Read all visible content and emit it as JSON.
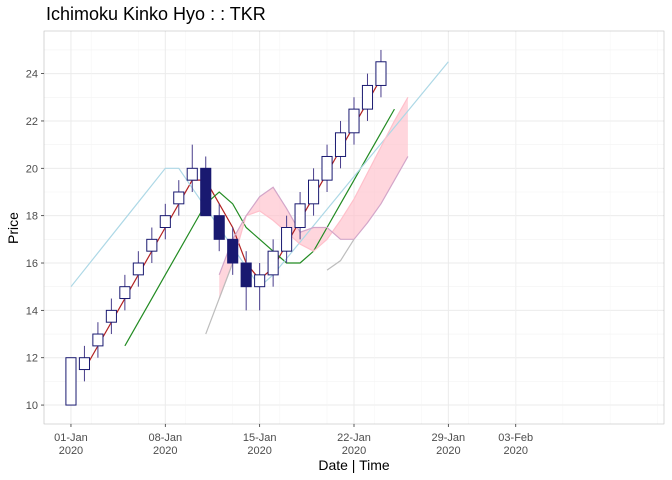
{
  "chart_data": {
    "type": "candlestick",
    "title": "Ichimoku Kinko Hyo : : TKR",
    "xlabel": "Date | Time",
    "ylabel": "Price",
    "ylim": [
      9.2,
      25.8
    ],
    "y_ticks": [
      10,
      12,
      14,
      16,
      18,
      20,
      22,
      24
    ],
    "x_ticks": [
      {
        "date": "2020-01-01",
        "label1": "01-Jan",
        "label2": "2020"
      },
      {
        "date": "2020-01-08",
        "label1": "08-Jan",
        "label2": "2020"
      },
      {
        "date": "2020-01-15",
        "label1": "15-Jan",
        "label2": "2020"
      },
      {
        "date": "2020-01-22",
        "label1": "22-Jan",
        "label2": "2020"
      },
      {
        "date": "2020-01-29",
        "label1": "29-Jan",
        "label2": "2020"
      },
      {
        "date": "2020-02-03",
        "label1": "03-Feb",
        "label2": "2020"
      }
    ],
    "xlim": [
      "2019-12-30",
      "2020-02-14"
    ],
    "grid": true,
    "colors": {
      "up_fill": "#ffffff",
      "up_border": "#191970",
      "down_fill": "#191970",
      "wick": "#483d8b",
      "tenkan": "#b22222",
      "kijun": "#228b22",
      "chikou": "#add8e6",
      "senkou_a": "#ffc0cb",
      "senkou_b": "#d3a6c9",
      "cloud": "#ffc0cb",
      "cloud_alt": "#bdbdbd"
    },
    "candles": [
      {
        "date": "2020-01-01",
        "open": 10,
        "high": 12,
        "low": 10,
        "close": 12
      },
      {
        "date": "2020-01-02",
        "open": 11.5,
        "high": 12.5,
        "low": 11,
        "close": 12
      },
      {
        "date": "2020-01-03",
        "open": 12.5,
        "high": 13.5,
        "low": 12,
        "close": 13
      },
      {
        "date": "2020-01-04",
        "open": 13.5,
        "high": 14.5,
        "low": 13,
        "close": 14
      },
      {
        "date": "2020-01-05",
        "open": 14.5,
        "high": 15.5,
        "low": 14,
        "close": 15
      },
      {
        "date": "2020-01-06",
        "open": 15.5,
        "high": 16.5,
        "low": 15,
        "close": 16
      },
      {
        "date": "2020-01-07",
        "open": 16.5,
        "high": 17.5,
        "low": 16,
        "close": 17
      },
      {
        "date": "2020-01-08",
        "open": 17.5,
        "high": 18.5,
        "low": 17,
        "close": 18
      },
      {
        "date": "2020-01-09",
        "open": 18.5,
        "high": 19.5,
        "low": 18,
        "close": 19
      },
      {
        "date": "2020-01-10",
        "open": 19.5,
        "high": 21,
        "low": 19,
        "close": 20
      },
      {
        "date": "2020-01-11",
        "open": 20,
        "high": 20.5,
        "low": 18,
        "close": 18
      },
      {
        "date": "2020-01-12",
        "open": 18,
        "high": 18.5,
        "low": 16.5,
        "close": 17
      },
      {
        "date": "2020-01-13",
        "open": 17,
        "high": 17.5,
        "low": 15.5,
        "close": 16
      },
      {
        "date": "2020-01-14",
        "open": 16,
        "high": 16.5,
        "low": 14,
        "close": 15
      },
      {
        "date": "2020-01-15",
        "open": 15,
        "high": 16,
        "low": 14,
        "close": 15.5
      },
      {
        "date": "2020-01-16",
        "open": 15.5,
        "high": 17,
        "low": 15,
        "close": 16.5
      },
      {
        "date": "2020-01-17",
        "open": 16.5,
        "high": 18,
        "low": 16,
        "close": 17.5
      },
      {
        "date": "2020-01-18",
        "open": 17.5,
        "high": 19,
        "low": 17,
        "close": 18.5
      },
      {
        "date": "2020-01-19",
        "open": 18.5,
        "high": 20,
        "low": 18,
        "close": 19.5
      },
      {
        "date": "2020-01-20",
        "open": 19.5,
        "high": 21,
        "low": 19,
        "close": 20.5
      },
      {
        "date": "2020-01-21",
        "open": 20.5,
        "high": 22,
        "low": 20,
        "close": 21.5
      },
      {
        "date": "2020-01-22",
        "open": 21.5,
        "high": 23,
        "low": 21,
        "close": 22.5
      },
      {
        "date": "2020-01-23",
        "open": 22.5,
        "high": 24,
        "low": 22,
        "close": 23.5
      },
      {
        "date": "2020-01-24",
        "open": 23.5,
        "high": 25,
        "low": 23,
        "close": 24.5
      }
    ],
    "series": [
      {
        "key": "tenkan",
        "points": [
          [
            "2020-01-02",
            11.5
          ],
          [
            "2020-01-03",
            12.5
          ],
          [
            "2020-01-04",
            13.5
          ],
          [
            "2020-01-05",
            14.5
          ],
          [
            "2020-01-06",
            15.5
          ],
          [
            "2020-01-07",
            16.5
          ],
          [
            "2020-01-08",
            17.5
          ],
          [
            "2020-01-09",
            18.5
          ],
          [
            "2020-01-10",
            19.5
          ],
          [
            "2020-01-11",
            19.5
          ],
          [
            "2020-01-12",
            18.5
          ],
          [
            "2020-01-13",
            17.5
          ],
          [
            "2020-01-14",
            16
          ],
          [
            "2020-01-15",
            15.3
          ],
          [
            "2020-01-16",
            15.8
          ],
          [
            "2020-01-17",
            16.8
          ],
          [
            "2020-01-18",
            17.8
          ],
          [
            "2020-01-19",
            18.8
          ],
          [
            "2020-01-20",
            19.8
          ],
          [
            "2020-01-21",
            20.8
          ],
          [
            "2020-01-22",
            21.8
          ],
          [
            "2020-01-23",
            22.8
          ],
          [
            "2020-01-24",
            23.8
          ]
        ]
      },
      {
        "key": "kijun",
        "points": [
          [
            "2020-01-05",
            12.5
          ],
          [
            "2020-01-06",
            13.5
          ],
          [
            "2020-01-07",
            14.5
          ],
          [
            "2020-01-08",
            15.5
          ],
          [
            "2020-01-09",
            16.5
          ],
          [
            "2020-01-10",
            17.5
          ],
          [
            "2020-01-11",
            18.5
          ],
          [
            "2020-01-12",
            19
          ],
          [
            "2020-01-13",
            18.5
          ],
          [
            "2020-01-14",
            17.5
          ],
          [
            "2020-01-15",
            17
          ],
          [
            "2020-01-16",
            16.5
          ],
          [
            "2020-01-17",
            16
          ],
          [
            "2020-01-18",
            16
          ],
          [
            "2020-01-19",
            16.5
          ],
          [
            "2020-01-20",
            17.5
          ],
          [
            "2020-01-21",
            18.5
          ],
          [
            "2020-01-22",
            19.5
          ],
          [
            "2020-01-23",
            20.5
          ],
          [
            "2020-01-24",
            21.5
          ],
          [
            "2020-01-25",
            22.5
          ]
        ]
      },
      {
        "key": "chikou",
        "points": [
          [
            "2020-01-01",
            15
          ],
          [
            "2020-01-08",
            20
          ],
          [
            "2020-01-09",
            20
          ],
          [
            "2020-01-15",
            15
          ],
          [
            "2020-01-16",
            15.5
          ],
          [
            "2020-01-29",
            24.5
          ]
        ]
      },
      {
        "key": "senkou_a",
        "points": [
          [
            "2020-01-12",
            14.5
          ],
          [
            "2020-01-13",
            16
          ],
          [
            "2020-01-14",
            18
          ],
          [
            "2020-01-15",
            18.2
          ],
          [
            "2020-01-16",
            17.8
          ],
          [
            "2020-01-17",
            17.3
          ],
          [
            "2020-01-18",
            16.8
          ],
          [
            "2020-01-19",
            16.5
          ],
          [
            "2020-01-20",
            17
          ],
          [
            "2020-01-21",
            17.8
          ],
          [
            "2020-01-22",
            18.7
          ],
          [
            "2020-01-23",
            19.8
          ],
          [
            "2020-01-24",
            20.9
          ],
          [
            "2020-01-25",
            22
          ],
          [
            "2020-01-26",
            23
          ]
        ]
      },
      {
        "key": "senkou_b",
        "points": [
          [
            "2020-01-12",
            15.5
          ],
          [
            "2020-01-13",
            17
          ],
          [
            "2020-01-14",
            18
          ],
          [
            "2020-01-15",
            18.8
          ],
          [
            "2020-01-16",
            19.2
          ],
          [
            "2020-01-17",
            18.3
          ],
          [
            "2020-01-18",
            17.3
          ],
          [
            "2020-01-19",
            17.5
          ],
          [
            "2020-01-20",
            17.5
          ],
          [
            "2020-01-21",
            17
          ],
          [
            "2020-01-22",
            17
          ],
          [
            "2020-01-23",
            17.7
          ],
          [
            "2020-01-24",
            18.5
          ],
          [
            "2020-01-25",
            19.5
          ],
          [
            "2020-01-26",
            20.5
          ]
        ]
      },
      {
        "key": "cloud_alt",
        "points": [
          [
            "2020-01-11",
            13
          ],
          [
            "2020-01-12",
            14.5
          ],
          [
            "2020-01-13",
            16
          ]
        ]
      }
    ],
    "cloud_bottom": [
      [
        "2020-01-20",
        15.7
      ],
      [
        "2020-01-21",
        16.1
      ],
      [
        "2020-01-22",
        17
      ]
    ]
  }
}
